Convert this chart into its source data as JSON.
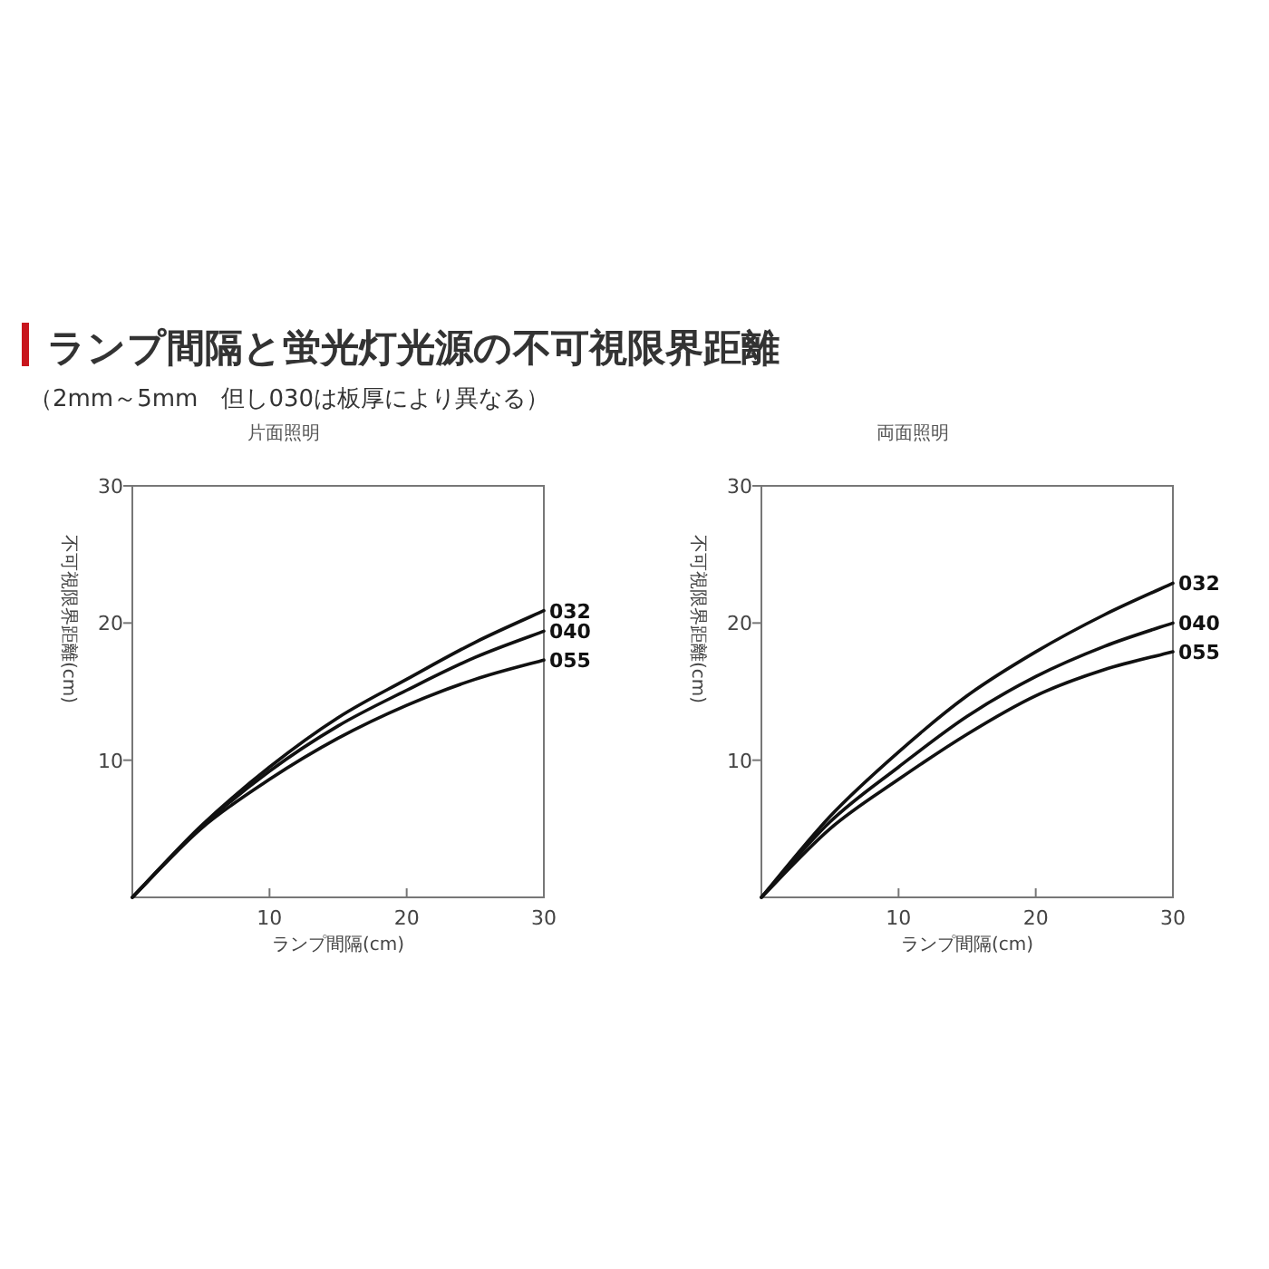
{
  "chart_data": [
    {
      "type": "other",
      "title": "ランプ間隔と蛍光灯光源の不可視限界距離",
      "subtitle": "（2mm～5mm　但し030は板厚により異なる）"
    },
    {
      "type": "line",
      "title": "片面照明",
      "xlabel": "ランプ間隔(cm)",
      "ylabel": "不可視限界距離(cm)",
      "xlim": [
        0,
        30
      ],
      "ylim": [
        0,
        30
      ],
      "xticks": [
        10,
        20,
        30
      ],
      "yticks": [
        10,
        20,
        30
      ],
      "grid": false,
      "marker": "none",
      "line_style": "solid",
      "x": [
        0,
        5,
        10,
        15,
        20,
        25,
        30
      ],
      "series": [
        {
          "name": "032",
          "color": "#111111",
          "values": [
            0,
            5.2,
            9.5,
            13.1,
            15.9,
            18.6,
            20.9
          ]
        },
        {
          "name": "040",
          "color": "#111111",
          "values": [
            0,
            5.1,
            9.2,
            12.5,
            15.1,
            17.5,
            19.4
          ]
        },
        {
          "name": "055",
          "color": "#111111",
          "values": [
            0,
            5.0,
            8.6,
            11.6,
            14.0,
            15.9,
            17.3
          ]
        }
      ]
    },
    {
      "type": "line",
      "title": "両面照明",
      "xlabel": "ランプ間隔(cm)",
      "ylabel": "不可視限界距離(cm)",
      "xlim": [
        0,
        30
      ],
      "ylim": [
        0,
        30
      ],
      "xticks": [
        10,
        20,
        30
      ],
      "yticks": [
        10,
        20,
        30
      ],
      "grid": false,
      "marker": "none",
      "line_style": "solid",
      "x": [
        0,
        5,
        10,
        15,
        20,
        25,
        30
      ],
      "series": [
        {
          "name": "032",
          "color": "#111111",
          "values": [
            0,
            5.9,
            10.6,
            14.7,
            17.9,
            20.6,
            22.9
          ]
        },
        {
          "name": "040",
          "color": "#111111",
          "values": [
            0,
            5.5,
            9.5,
            13.2,
            16.1,
            18.3,
            20.0
          ]
        },
        {
          "name": "055",
          "color": "#111111",
          "values": [
            0,
            5.0,
            8.6,
            11.9,
            14.7,
            16.6,
            17.9
          ]
        }
      ]
    }
  ]
}
